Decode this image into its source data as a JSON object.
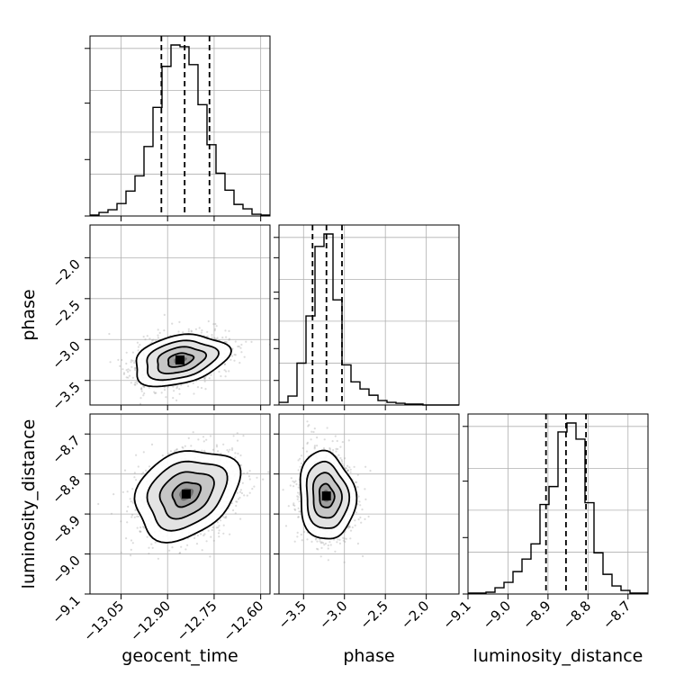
{
  "chart_data": {
    "type": "corner",
    "parameters": [
      "geocent_time",
      "phase",
      "luminosity_distance"
    ],
    "axis_labels": {
      "geocent_time": "geocent_time",
      "phase": "phase",
      "luminosity_distance": "luminosity_distance"
    },
    "ranges": {
      "geocent_time": [
        -13.15,
        -12.57
      ],
      "phase": [
        -3.8,
        -1.6
      ],
      "luminosity_distance": [
        -9.1,
        -8.65
      ]
    },
    "ticks": {
      "geocent_time": {
        "values": [
          -13.05,
          -12.9,
          -12.75,
          -12.6
        ],
        "labels": [
          "−13.05",
          "−12.90",
          "−12.75",
          "−12.60"
        ]
      },
      "phase": {
        "values": [
          -3.5,
          -3.0,
          -2.5,
          -2.0
        ],
        "labels": [
          "−3.5",
          "−3.0",
          "−2.5",
          "−2.0"
        ]
      },
      "luminosity_distance": {
        "values": [
          -9.1,
          -9.0,
          -8.9,
          -8.8,
          -8.7
        ],
        "labels": [
          "−9.1",
          "−9.0",
          "−8.9",
          "−8.8",
          "−8.7"
        ]
      }
    },
    "quantiles": {
      "geocent_time": [
        -12.92,
        -12.845,
        -12.765
      ],
      "phase": [
        -3.39,
        -3.22,
        -3.03
      ],
      "luminosity_distance": [
        -8.905,
        -8.855,
        -8.805
      ]
    },
    "histograms": {
      "geocent_time": {
        "bin_edges": [
          -13.15,
          -13.121,
          -13.092,
          -13.063,
          -13.034,
          -13.005,
          -12.976,
          -12.947,
          -12.918,
          -12.889,
          -12.86,
          -12.831,
          -12.802,
          -12.773,
          -12.744,
          -12.715,
          -12.686,
          -12.657,
          -12.628,
          -12.599,
          -12.57
        ],
        "counts": [
          1,
          4,
          7,
          14,
          28,
          45,
          78,
          122,
          168,
          192,
          190,
          170,
          125,
          80,
          48,
          29,
          13,
          8,
          2,
          1
        ]
      },
      "phase": {
        "bin_edges": [
          -3.8,
          -3.69,
          -3.58,
          -3.47,
          -3.36,
          -3.25,
          -3.14,
          -3.03,
          -2.92,
          -2.81,
          -2.7,
          -2.59,
          -2.48,
          -2.37,
          -2.26,
          -2.15,
          -2.04,
          -1.93,
          -1.82,
          -1.71,
          -1.6
        ],
        "counts": [
          3,
          10,
          47,
          100,
          178,
          192,
          118,
          45,
          26,
          18,
          11,
          5,
          3,
          2,
          1,
          1,
          0,
          0,
          0,
          0
        ]
      },
      "luminosity_distance": {
        "bin_edges": [
          -9.1,
          -9.0775,
          -9.055,
          -9.0325,
          -9.01,
          -8.9875,
          -8.965,
          -8.9425,
          -8.92,
          -8.8975,
          -8.875,
          -8.8525,
          -8.83,
          -8.8075,
          -8.785,
          -8.7625,
          -8.74,
          -8.7175,
          -8.695,
          -8.6725,
          -8.65
        ],
        "counts": [
          1,
          1,
          2,
          7,
          13,
          25,
          39,
          56,
          100,
          120,
          181,
          191,
          173,
          102,
          46,
          22,
          9,
          4,
          1,
          1
        ]
      }
    },
    "pair_density_peaks": [
      {
        "x": "geocent_time",
        "y": "phase",
        "center": [
          -12.86,
          -3.25
        ]
      },
      {
        "x": "geocent_time",
        "y": "luminosity_distance",
        "center": [
          -12.84,
          -8.85
        ]
      },
      {
        "x": "phase",
        "y": "luminosity_distance",
        "center": [
          -3.22,
          -8.855
        ]
      }
    ],
    "grid": true,
    "style": {
      "line_color": "#000000",
      "grid_color": "#b0b0b0",
      "scatter_color": "#9a9a9a"
    }
  }
}
